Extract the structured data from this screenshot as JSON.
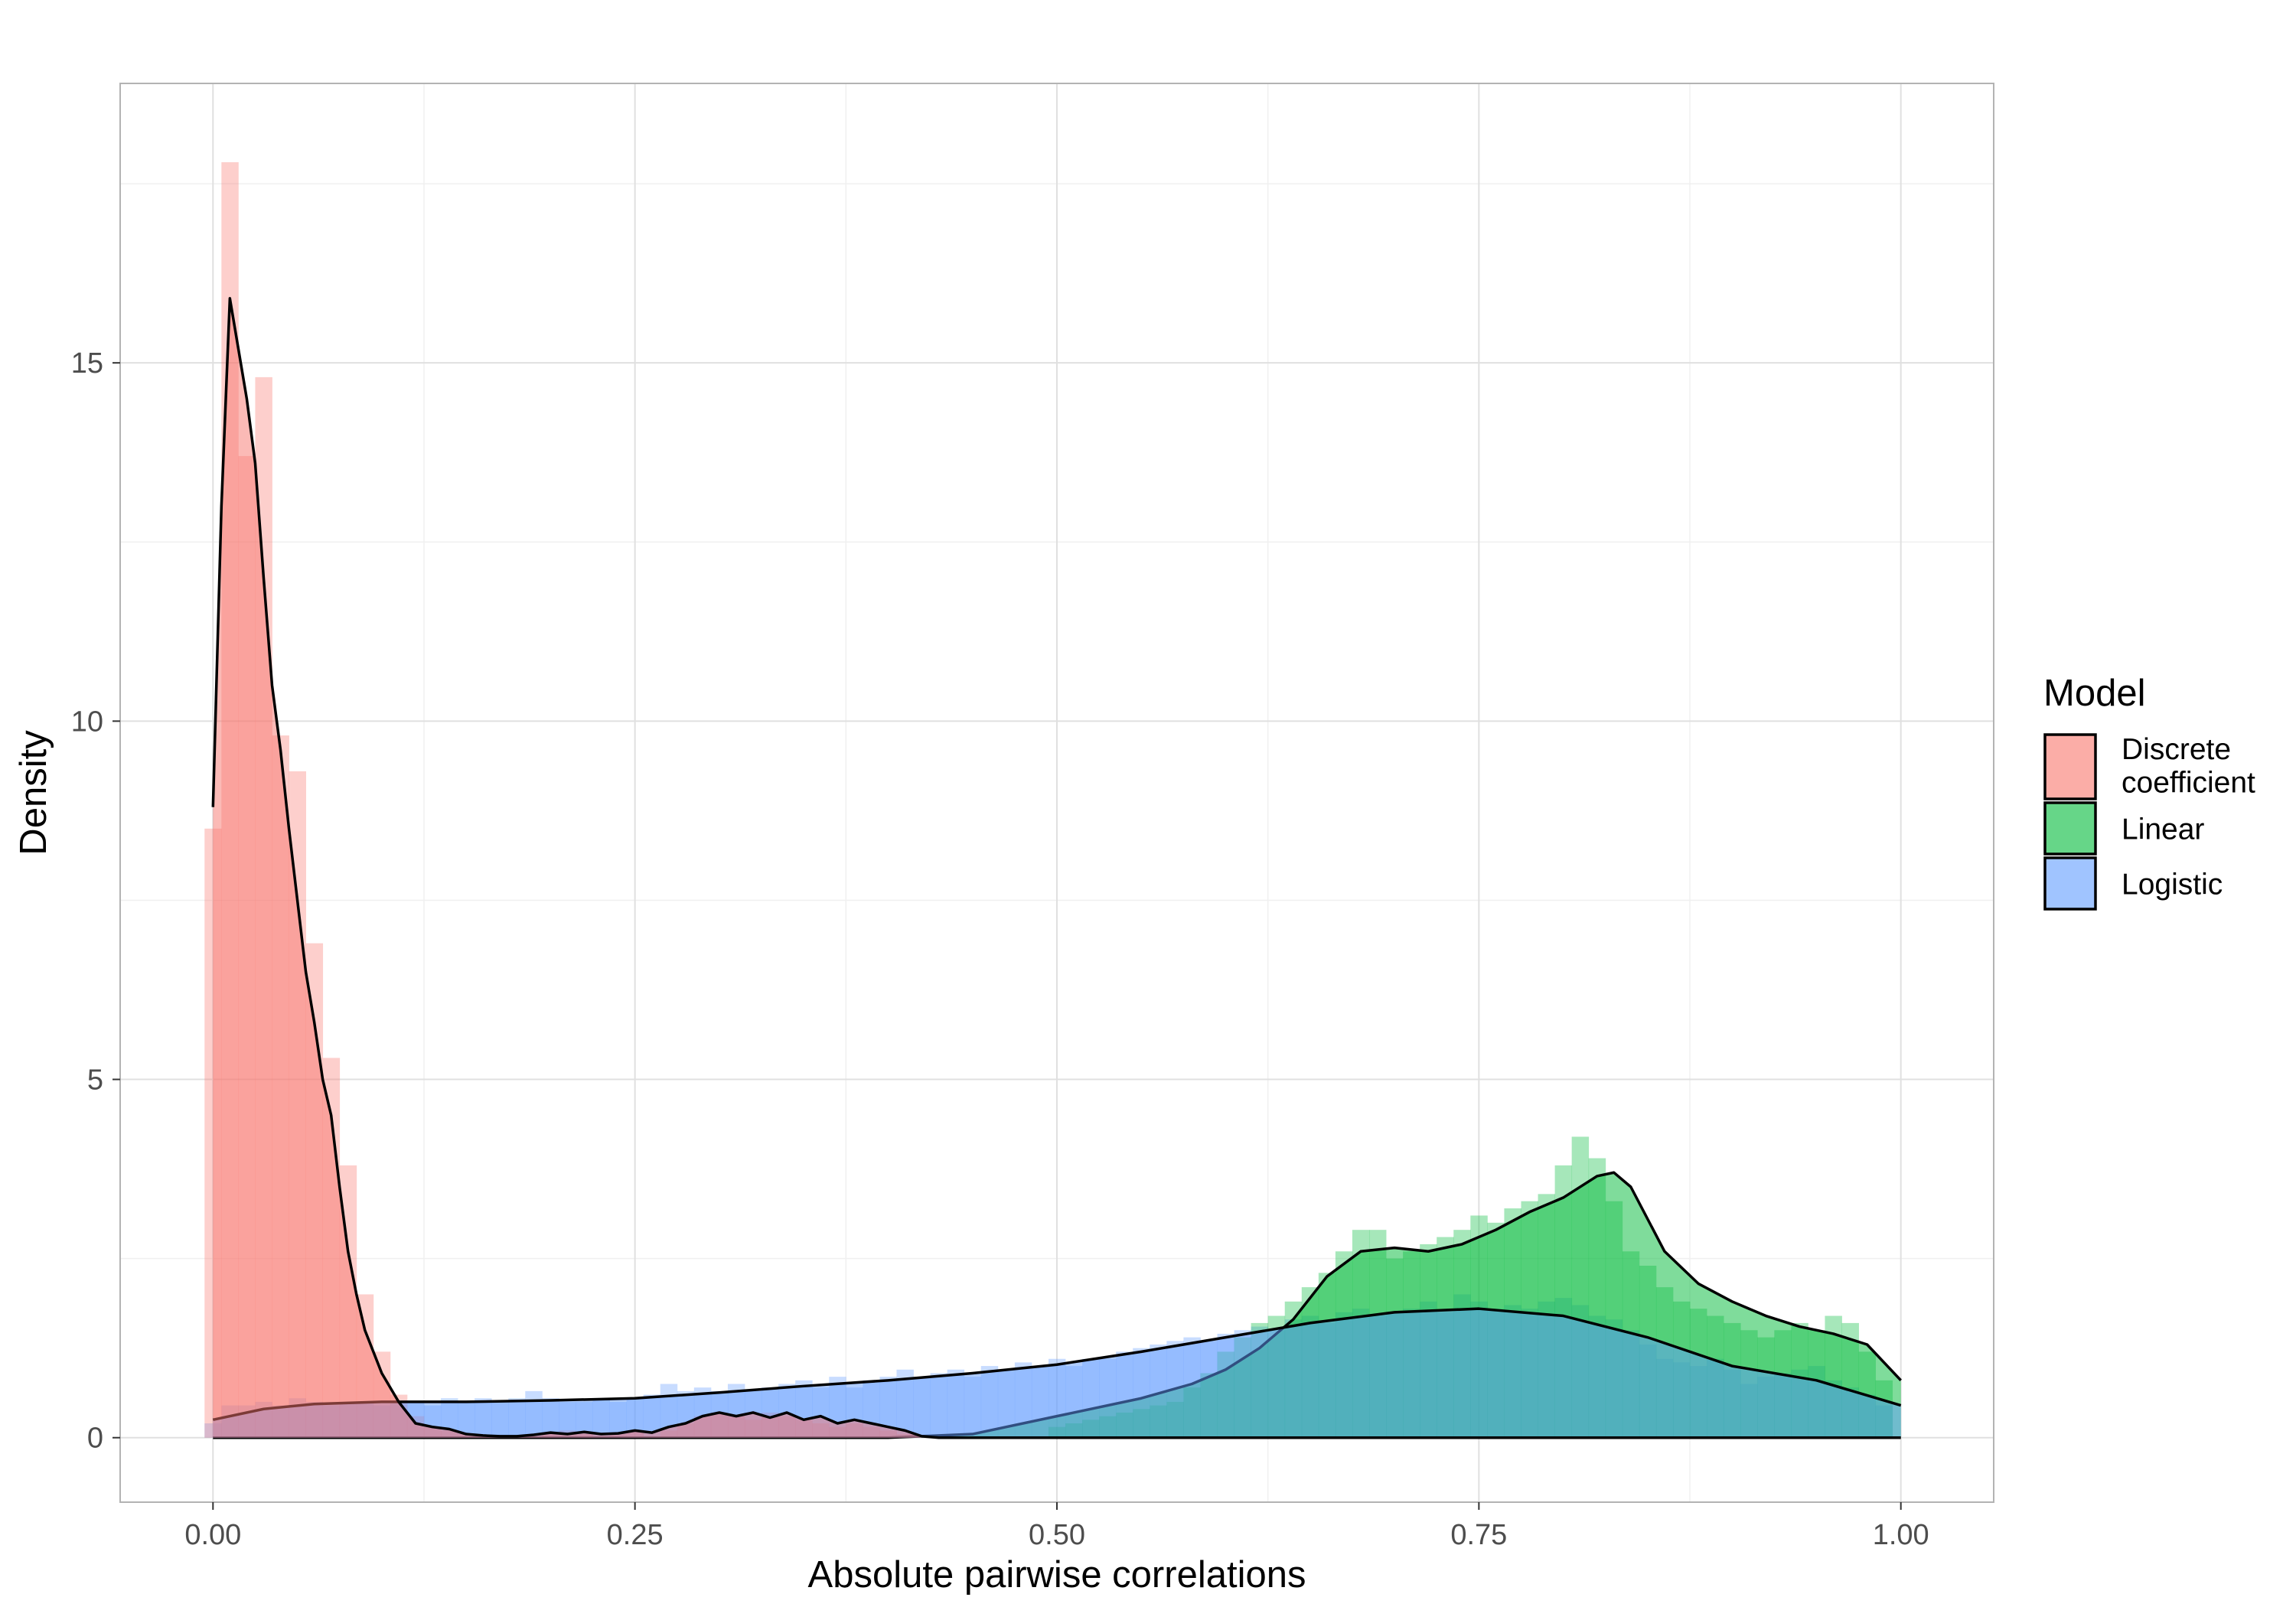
{
  "chart_data": {
    "type": "area",
    "title": "",
    "xlabel": "Absolute pairwise correlations",
    "ylabel": "Density",
    "xlim": [
      -0.055,
      1.055
    ],
    "ylim": [
      -0.9,
      18.9
    ],
    "x_ticks": [
      0,
      0.25,
      0.5,
      0.75,
      1
    ],
    "x_tick_labels": [
      "0.00",
      "0.25",
      "0.50",
      "0.75",
      "1.00"
    ],
    "y_ticks": [
      0,
      5,
      10,
      15
    ],
    "y_tick_labels": [
      "0",
      "5",
      "10",
      "15"
    ],
    "grid": true,
    "legend": {
      "title": "Model",
      "placement": "right"
    },
    "bin_width": 0.01,
    "series": [
      {
        "name": "Discrete coefficient",
        "color": "#F8766D",
        "hist_values": [
          8.5,
          17.8,
          13.7,
          14.8,
          9.8,
          9.3,
          6.9,
          5.3,
          3.8,
          2.0,
          1.2,
          0.6,
          0.3,
          0.15,
          0.1,
          0.05,
          0.03,
          0.02,
          0.01,
          0.01,
          0.05,
          0.1,
          0.05,
          0.02,
          0.05,
          0.08,
          0.02,
          0.1,
          0.2,
          0.3,
          0.35,
          0.3,
          0.25,
          0.35,
          0.3,
          0.25,
          0.2,
          0.15,
          0.2,
          0.15,
          0.1,
          0.05
        ],
        "density": {
          "x": [
            0.0,
            0.005,
            0.01,
            0.015,
            0.02,
            0.025,
            0.03,
            0.035,
            0.04,
            0.045,
            0.05,
            0.055,
            0.06,
            0.065,
            0.07,
            0.075,
            0.08,
            0.085,
            0.09,
            0.1,
            0.11,
            0.12,
            0.13,
            0.14,
            0.15,
            0.16,
            0.17,
            0.18,
            0.19,
            0.2,
            0.21,
            0.22,
            0.23,
            0.24,
            0.25,
            0.26,
            0.27,
            0.28,
            0.29,
            0.3,
            0.31,
            0.32,
            0.33,
            0.34,
            0.35,
            0.36,
            0.37,
            0.38,
            0.39,
            0.4,
            0.41,
            0.42,
            0.43,
            0.45,
            0.5,
            0.6,
            0.7,
            0.8,
            0.9,
            1.0
          ],
          "y": [
            8.8,
            13.0,
            15.9,
            15.2,
            14.5,
            13.6,
            12.0,
            10.5,
            9.6,
            8.5,
            7.5,
            6.5,
            5.8,
            5.0,
            4.5,
            3.5,
            2.6,
            2.0,
            1.5,
            0.9,
            0.5,
            0.2,
            0.15,
            0.12,
            0.05,
            0.03,
            0.02,
            0.02,
            0.04,
            0.07,
            0.05,
            0.08,
            0.05,
            0.06,
            0.1,
            0.07,
            0.15,
            0.2,
            0.3,
            0.35,
            0.3,
            0.35,
            0.28,
            0.35,
            0.25,
            0.3,
            0.2,
            0.25,
            0.2,
            0.15,
            0.1,
            0.02,
            0.0,
            0.0,
            0.0,
            0.0,
            0.0,
            0.0,
            0.0,
            0.0
          ]
        }
      },
      {
        "name": "Linear",
        "color": "#00BA38",
        "hist_values": [
          0,
          0,
          0,
          0,
          0,
          0,
          0,
          0,
          0,
          0,
          0,
          0,
          0,
          0,
          0,
          0,
          0,
          0,
          0,
          0,
          0,
          0,
          0,
          0,
          0,
          0,
          0,
          0,
          0,
          0,
          0,
          0,
          0,
          0,
          0,
          0,
          0,
          0,
          0,
          0,
          0,
          0,
          0,
          0,
          0,
          0,
          0,
          0,
          0,
          0,
          0.15,
          0.2,
          0.25,
          0.3,
          0.35,
          0.4,
          0.45,
          0.5,
          0.7,
          0.9,
          1.2,
          1.4,
          1.6,
          1.7,
          1.9,
          2.1,
          2.3,
          2.6,
          2.9,
          2.9,
          2.5,
          2.6,
          2.7,
          2.8,
          2.9,
          3.1,
          3.0,
          3.2,
          3.3,
          3.4,
          3.8,
          4.2,
          3.9,
          3.3,
          2.6,
          2.4,
          2.1,
          1.9,
          1.8,
          1.7,
          1.6,
          1.5,
          1.4,
          1.5,
          1.6,
          1.5,
          1.7,
          1.6,
          1.2,
          0.8
        ]
      },
      {
        "name": "Logistic",
        "color": "#619CFF",
        "hist_values": [
          0.2,
          0.45,
          0.45,
          0.5,
          0.45,
          0.55,
          0.5,
          0.45,
          0.5,
          0.5,
          0.45,
          0.5,
          0.5,
          0.45,
          0.55,
          0.5,
          0.55,
          0.5,
          0.55,
          0.65,
          0.55,
          0.5,
          0.5,
          0.55,
          0.5,
          0.55,
          0.6,
          0.75,
          0.65,
          0.7,
          0.65,
          0.75,
          0.65,
          0.7,
          0.75,
          0.8,
          0.7,
          0.85,
          0.7,
          0.8,
          0.85,
          0.95,
          0.85,
          0.9,
          0.95,
          0.85,
          1.0,
          0.95,
          1.05,
          1.0,
          1.1,
          1.0,
          1.1,
          1.1,
          1.2,
          1.25,
          1.3,
          1.35,
          1.4,
          1.35,
          1.45,
          1.5,
          1.55,
          1.5,
          1.65,
          1.7,
          1.6,
          1.75,
          1.8,
          1.7,
          1.75,
          1.8,
          1.9,
          1.75,
          2.0,
          1.9,
          1.8,
          1.85,
          1.8,
          1.9,
          1.95,
          1.85,
          1.7,
          1.65,
          1.5,
          1.3,
          1.1,
          1.05,
          1.0,
          1.1,
          0.95,
          0.75,
          0.85,
          0.9,
          0.95,
          1.0,
          0.8,
          0.7,
          0.6,
          0.45
        ]
      }
    ],
    "density_curves": [
      {
        "series": "Linear",
        "x": [
          0.0,
          0.1,
          0.2,
          0.3,
          0.4,
          0.45,
          0.5,
          0.55,
          0.58,
          0.6,
          0.62,
          0.64,
          0.66,
          0.68,
          0.7,
          0.72,
          0.74,
          0.76,
          0.78,
          0.8,
          0.82,
          0.83,
          0.84,
          0.86,
          0.88,
          0.9,
          0.92,
          0.94,
          0.96,
          0.98,
          1.0
        ],
        "y": [
          0.0,
          0.0,
          0.0,
          0.0,
          0.0,
          0.05,
          0.3,
          0.55,
          0.75,
          0.95,
          1.25,
          1.65,
          2.25,
          2.6,
          2.65,
          2.6,
          2.7,
          2.9,
          3.15,
          3.35,
          3.65,
          3.7,
          3.5,
          2.6,
          2.15,
          1.9,
          1.7,
          1.55,
          1.45,
          1.3,
          0.8
        ]
      },
      {
        "series": "Logistic",
        "x": [
          0.0,
          0.03,
          0.06,
          0.1,
          0.15,
          0.2,
          0.25,
          0.3,
          0.35,
          0.4,
          0.45,
          0.5,
          0.55,
          0.6,
          0.65,
          0.7,
          0.75,
          0.8,
          0.85,
          0.9,
          0.95,
          1.0
        ],
        "y": [
          0.25,
          0.4,
          0.47,
          0.5,
          0.5,
          0.52,
          0.55,
          0.63,
          0.72,
          0.8,
          0.9,
          1.02,
          1.2,
          1.4,
          1.6,
          1.75,
          1.8,
          1.7,
          1.4,
          1.0,
          0.8,
          0.45
        ]
      }
    ]
  }
}
